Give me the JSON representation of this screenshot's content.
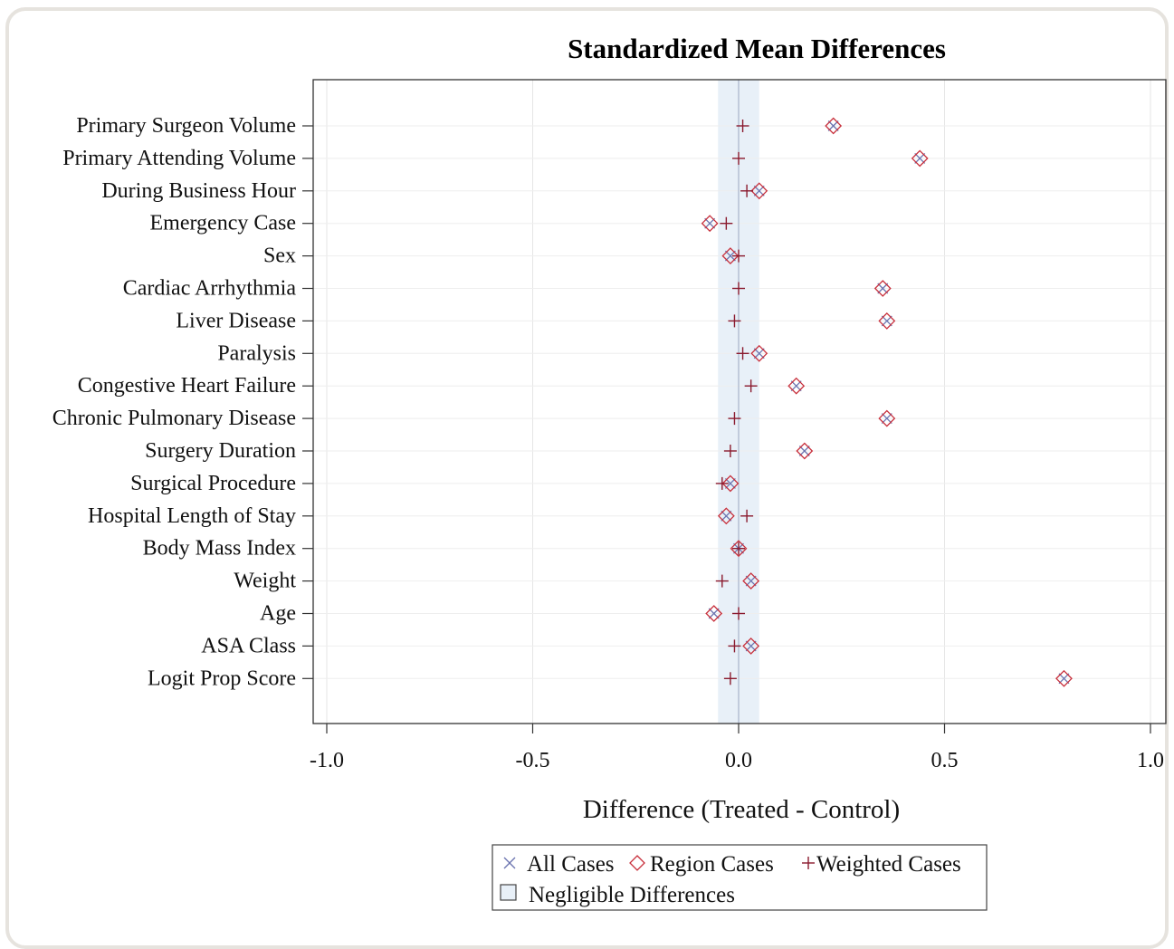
{
  "chart_data": {
    "type": "scatter",
    "title": "Standardized Mean Differences",
    "xlabel": "Difference (Treated - Control)",
    "ylabel": "",
    "xlim": [
      -1.0,
      1.0
    ],
    "x_ticks": [
      "-1.0",
      "-0.5",
      "0.0",
      "0.5",
      "1.0"
    ],
    "x_tick_values": [
      -1.0,
      -0.5,
      0.0,
      0.5,
      1.0
    ],
    "grid": true,
    "negligible_band": [
      -0.05,
      0.05
    ],
    "categories": [
      "Primary Surgeon Volume",
      "Primary Attending Volume",
      "During Business Hour",
      "Emergency Case",
      "Sex",
      "Cardiac Arrhythmia",
      "Liver Disease",
      "Paralysis",
      "Congestive Heart Failure",
      "Chronic Pulmonary Disease",
      "Surgery Duration",
      "Surgical Procedure",
      "Hospital Length of Stay",
      "Body Mass Index",
      "Weight",
      "Age",
      "ASA Class",
      "Logit Prop Score"
    ],
    "series": [
      {
        "name": "All Cases",
        "marker": "x",
        "color": "#6b74b0",
        "values": [
          0.23,
          0.44,
          0.05,
          -0.07,
          -0.02,
          0.35,
          0.36,
          0.05,
          0.14,
          0.36,
          0.16,
          -0.02,
          -0.03,
          0.0,
          0.03,
          -0.06,
          0.03,
          0.79
        ]
      },
      {
        "name": "Region Cases",
        "marker": "diamond",
        "color": "#c8303c",
        "values": [
          0.23,
          0.44,
          0.05,
          -0.07,
          -0.02,
          0.35,
          0.36,
          0.05,
          0.14,
          0.36,
          0.16,
          -0.02,
          -0.03,
          0.0,
          0.03,
          -0.06,
          0.03,
          0.79
        ]
      },
      {
        "name": "Weighted Cases",
        "marker": "plus",
        "color": "#8a1a2e",
        "values": [
          0.01,
          0.0,
          0.02,
          -0.03,
          0.0,
          0.0,
          -0.01,
          0.01,
          0.03,
          -0.01,
          -0.02,
          -0.04,
          0.02,
          0.0,
          -0.04,
          0.0,
          -0.01,
          -0.02
        ]
      }
    ],
    "legend": {
      "position": "bottom",
      "items": [
        "All Cases",
        "Region Cases",
        "Weighted Cases",
        "Negligible Differences"
      ]
    },
    "colors": {
      "band": "#e8f0f8",
      "zero_line": "#9aa6bf",
      "grid": "#e6e6e6",
      "axis": "#333333"
    }
  }
}
